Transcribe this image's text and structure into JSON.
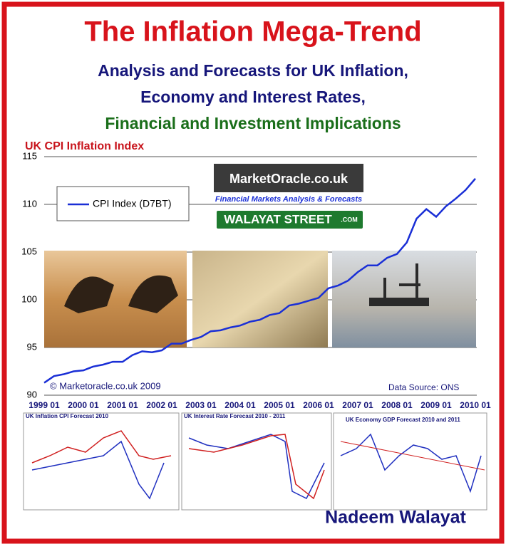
{
  "title": "The Inflation Mega-Trend",
  "subtitle": [
    "Analysis and Forecasts for UK  Inflation,",
    "Economy and Interest Rates,",
    "Financial and Investment Implications"
  ],
  "logos": {
    "site": "MarketOracle.co.uk",
    "tagline": "Financial Markets Analysis & Forecasts",
    "street": "WALAYAT STREET",
    "street_suffix": ".COM"
  },
  "chart_data": {
    "type": "line",
    "title": "UK CPI Inflation Index",
    "categories": [
      "1999 01",
      null,
      null,
      null,
      "2000 01",
      null,
      null,
      null,
      "2001 01",
      null,
      null,
      null,
      "2002 01",
      null,
      null,
      null,
      "2003 01",
      null,
      null,
      null,
      "2004 01",
      null,
      null,
      null,
      "2005 01",
      null,
      null,
      null,
      "2006 01",
      null,
      null,
      null,
      "2007 01",
      null,
      null,
      null,
      "2008 01",
      null,
      null,
      null,
      "2009 01",
      null,
      null,
      null,
      "2010 01"
    ],
    "series": [
      {
        "name": "CPI Index (D7BT)",
        "color": "#1a2fd6",
        "values": [
          91.3,
          92.0,
          92.2,
          92.5,
          92.6,
          93.0,
          93.2,
          93.5,
          93.5,
          94.2,
          94.6,
          94.5,
          94.7,
          95.4,
          95.4,
          95.8,
          96.1,
          96.7,
          96.8,
          97.1,
          97.3,
          97.7,
          97.9,
          98.4,
          98.6,
          99.4,
          99.6,
          99.9,
          100.2,
          101.2,
          101.5,
          102.0,
          102.9,
          103.6,
          103.6,
          104.4,
          104.8,
          106.0,
          108.5,
          109.5,
          108.7,
          109.8,
          110.6,
          111.5,
          112.7
        ]
      }
    ],
    "ylim": [
      90,
      115
    ],
    "yticks": [
      90,
      95,
      100,
      105,
      110,
      115
    ],
    "grid": true,
    "legend": "top-left",
    "copyright": "© Marketoracle.co.uk  2009",
    "source": "Data Source: ONS"
  },
  "thumbnails": [
    "UK Inflation CPI Forecast 2010",
    "UK Interest Rate Forecast 2010 - 2011",
    "UK Economy GDP Forecast 2010 and 2011"
  ],
  "author": "Nadeem Walayat"
}
